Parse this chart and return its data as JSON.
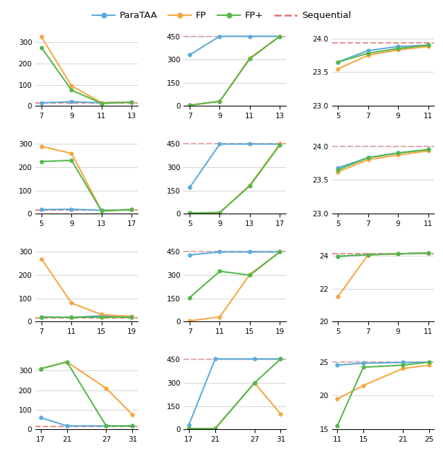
{
  "legend": {
    "ParaTAA": {
      "color": "#5aa0d0",
      "linestyle": "-",
      "marker": "o"
    },
    "FP": {
      "color": "#f5a742",
      "linestyle": "-",
      "marker": "o"
    },
    "FP+": {
      "color": "#4caf50",
      "linestyle": "-",
      "marker": "o"
    },
    "Sequential": {
      "color": "#e87070",
      "linestyle": "--",
      "marker": null
    }
  },
  "rows": [
    {
      "col1": {
        "x": [
          7,
          9,
          11,
          13
        ],
        "ParaTAA": [
          15,
          20,
          15,
          18
        ],
        "FP": [
          325,
          95,
          15,
          18
        ],
        "FP+": [
          275,
          75,
          12,
          18
        ],
        "Sequential": 15,
        "ylim": [
          0,
          350
        ],
        "yticks": [
          0,
          100,
          200,
          300
        ]
      },
      "col2": {
        "x": [
          7,
          9,
          11,
          13
        ],
        "ParaTAA": [
          330,
          450,
          450,
          450
        ],
        "FP": [
          5,
          30,
          310,
          450
        ],
        "FP+": [
          5,
          30,
          305,
          450
        ],
        "Sequential": 450,
        "ylim": [
          0,
          480
        ],
        "yticks": [
          0,
          150,
          300,
          450
        ]
      },
      "col3": {
        "x": [
          5,
          7,
          9,
          11
        ],
        "ParaTAA": [
          23.65,
          23.82,
          23.88,
          23.9
        ],
        "FP": [
          23.55,
          23.75,
          23.83,
          23.88
        ],
        "FP+": [
          23.65,
          23.78,
          23.85,
          23.9
        ],
        "Sequential": 23.93,
        "ylim": [
          23.0,
          24.1
        ],
        "yticks": [
          23.0,
          23.5,
          24.0
        ]
      }
    },
    {
      "col1": {
        "x": [
          5,
          9,
          13,
          17
        ],
        "ParaTAA": [
          18,
          20,
          15,
          18
        ],
        "FP": [
          290,
          260,
          12,
          18
        ],
        "FP+": [
          225,
          230,
          12,
          18
        ],
        "Sequential": 15,
        "ylim": [
          0,
          320
        ],
        "yticks": [
          0,
          100,
          200,
          300
        ]
      },
      "col2": {
        "x": [
          5,
          9,
          13,
          17
        ],
        "ParaTAA": [
          170,
          450,
          450,
          450
        ],
        "FP": [
          5,
          8,
          185,
          450
        ],
        "FP+": [
          5,
          8,
          180,
          445
        ],
        "Sequential": 450,
        "ylim": [
          0,
          480
        ],
        "yticks": [
          0,
          150,
          300,
          450
        ]
      },
      "col3": {
        "x": [
          5,
          7,
          9,
          11
        ],
        "ParaTAA": [
          23.68,
          23.83,
          23.9,
          23.95
        ],
        "FP": [
          23.62,
          23.8,
          23.87,
          23.93
        ],
        "FP+": [
          23.65,
          23.83,
          23.9,
          23.95
        ],
        "Sequential": 24.0,
        "ylim": [
          23.0,
          24.1
        ],
        "yticks": [
          23.0,
          23.5,
          24.0
        ]
      }
    },
    {
      "col1": {
        "x": [
          7,
          11,
          15,
          19
        ],
        "ParaTAA": [
          20,
          18,
          25,
          22
        ],
        "FP": [
          270,
          80,
          30,
          22
        ],
        "FP+": [
          18,
          18,
          18,
          18
        ],
        "Sequential": 15,
        "ylim": [
          0,
          320
        ],
        "yticks": [
          0,
          100,
          200,
          300
        ]
      },
      "col2": {
        "x": [
          7,
          11,
          15,
          19
        ],
        "ParaTAA": [
          430,
          450,
          450,
          450
        ],
        "FP": [
          5,
          30,
          305,
          450
        ],
        "FP+": [
          155,
          325,
          300,
          450
        ],
        "Sequential": 450,
        "ylim": [
          0,
          480
        ],
        "yticks": [
          0,
          150,
          300,
          450
        ]
      },
      "col3": {
        "x": [
          5,
          7,
          9,
          11
        ],
        "ParaTAA": [
          23.95,
          24.05,
          24.1,
          24.15
        ],
        "FP": [
          21.5,
          24.05,
          24.1,
          24.15
        ],
        "FP+": [
          23.95,
          24.05,
          24.1,
          24.15
        ],
        "Sequential": 24.1,
        "ylim": [
          20,
          24.5
        ],
        "yticks": [
          20,
          22,
          24
        ]
      }
    },
    {
      "col1": {
        "x": [
          17,
          21,
          27,
          31
        ],
        "ParaTAA": [
          60,
          18,
          18,
          18
        ],
        "FP": [
          310,
          345,
          210,
          75
        ],
        "FP+": [
          310,
          345,
          18,
          18
        ],
        "Sequential": 15,
        "ylim": [
          0,
          380
        ],
        "yticks": [
          0,
          100,
          200,
          300
        ]
      },
      "col2": {
        "x": [
          17,
          21,
          27,
          31
        ],
        "ParaTAA": [
          30,
          455,
          455,
          455
        ],
        "FP": [
          5,
          5,
          300,
          100
        ],
        "FP+": [
          5,
          5,
          300,
          455
        ],
        "Sequential": 450,
        "ylim": [
          0,
          480
        ],
        "yticks": [
          0,
          150,
          300,
          450
        ]
      },
      "col3": {
        "x": [
          11,
          15,
          21,
          25
        ],
        "ParaTAA": [
          24.5,
          24.8,
          24.9,
          24.95
        ],
        "FP": [
          19.5,
          21.5,
          24.0,
          24.5
        ],
        "FP+": [
          15.5,
          24.2,
          24.5,
          24.95
        ],
        "Sequential": 24.9,
        "ylim": [
          15,
          26
        ],
        "yticks": [
          15,
          20,
          25
        ]
      }
    }
  ],
  "colors": {
    "ParaTAA": "#5aabdb",
    "FP": "#f5a742",
    "FP+": "#55b84a",
    "Sequential": "#e87878"
  }
}
